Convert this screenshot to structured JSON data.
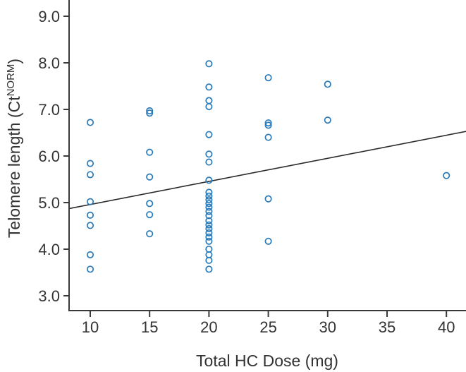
{
  "chart_data": {
    "type": "scatter",
    "title": "",
    "xlabel": "Total HC Dose (mg)",
    "ylabel_base": "Telomere length (Ct",
    "ylabel_sup": "NORM",
    "ylabel_close": ")",
    "xlim": [
      8.2,
      41.7
    ],
    "ylim": [
      2.67,
      9.35
    ],
    "x_ticks": [
      "10",
      "15",
      "20",
      "25",
      "30",
      "35",
      "40"
    ],
    "y_ticks": [
      "3.0",
      "4.0",
      "5.0",
      "6.0",
      "7.0",
      "8.0",
      "9.0"
    ],
    "grid": false,
    "legend": "none",
    "marker_style": "open-circle",
    "point_color": "#2a7ab9",
    "axis_color": "#3a3a3a",
    "trend_color": "#2b2b2b",
    "points": [
      [
        10,
        6.72
      ],
      [
        10,
        5.84
      ],
      [
        10,
        5.6
      ],
      [
        10,
        5.02
      ],
      [
        10,
        4.73
      ],
      [
        10,
        4.51
      ],
      [
        10,
        3.88
      ],
      [
        10,
        3.57
      ],
      [
        15,
        6.97
      ],
      [
        15,
        6.92
      ],
      [
        15,
        6.08
      ],
      [
        15,
        5.55
      ],
      [
        15,
        4.98
      ],
      [
        15,
        4.74
      ],
      [
        15,
        4.33
      ],
      [
        20,
        7.98
      ],
      [
        20,
        7.48
      ],
      [
        20,
        7.19
      ],
      [
        20,
        7.06
      ],
      [
        20,
        6.46
      ],
      [
        20,
        6.04
      ],
      [
        20,
        5.87
      ],
      [
        20,
        5.48
      ],
      [
        20,
        5.22
      ],
      [
        20,
        5.14
      ],
      [
        20,
        5.06
      ],
      [
        20,
        4.98
      ],
      [
        20,
        4.9
      ],
      [
        20,
        4.81
      ],
      [
        20,
        4.72
      ],
      [
        20,
        4.61
      ],
      [
        20,
        4.52
      ],
      [
        20,
        4.44
      ],
      [
        20,
        4.35
      ],
      [
        20,
        4.26
      ],
      [
        20,
        4.17
      ],
      [
        20,
        4.0
      ],
      [
        20,
        3.88
      ],
      [
        20,
        3.76
      ],
      [
        20,
        3.57
      ],
      [
        25,
        7.68
      ],
      [
        25,
        6.71
      ],
      [
        25,
        6.66
      ],
      [
        25,
        6.4
      ],
      [
        25,
        5.08
      ],
      [
        25,
        4.17
      ],
      [
        30,
        7.54
      ],
      [
        30,
        6.77
      ],
      [
        40,
        5.58
      ]
    ],
    "trend_line": {
      "x1": 8.2,
      "y1": 4.87,
      "x2": 41.7,
      "y2": 6.53
    }
  }
}
